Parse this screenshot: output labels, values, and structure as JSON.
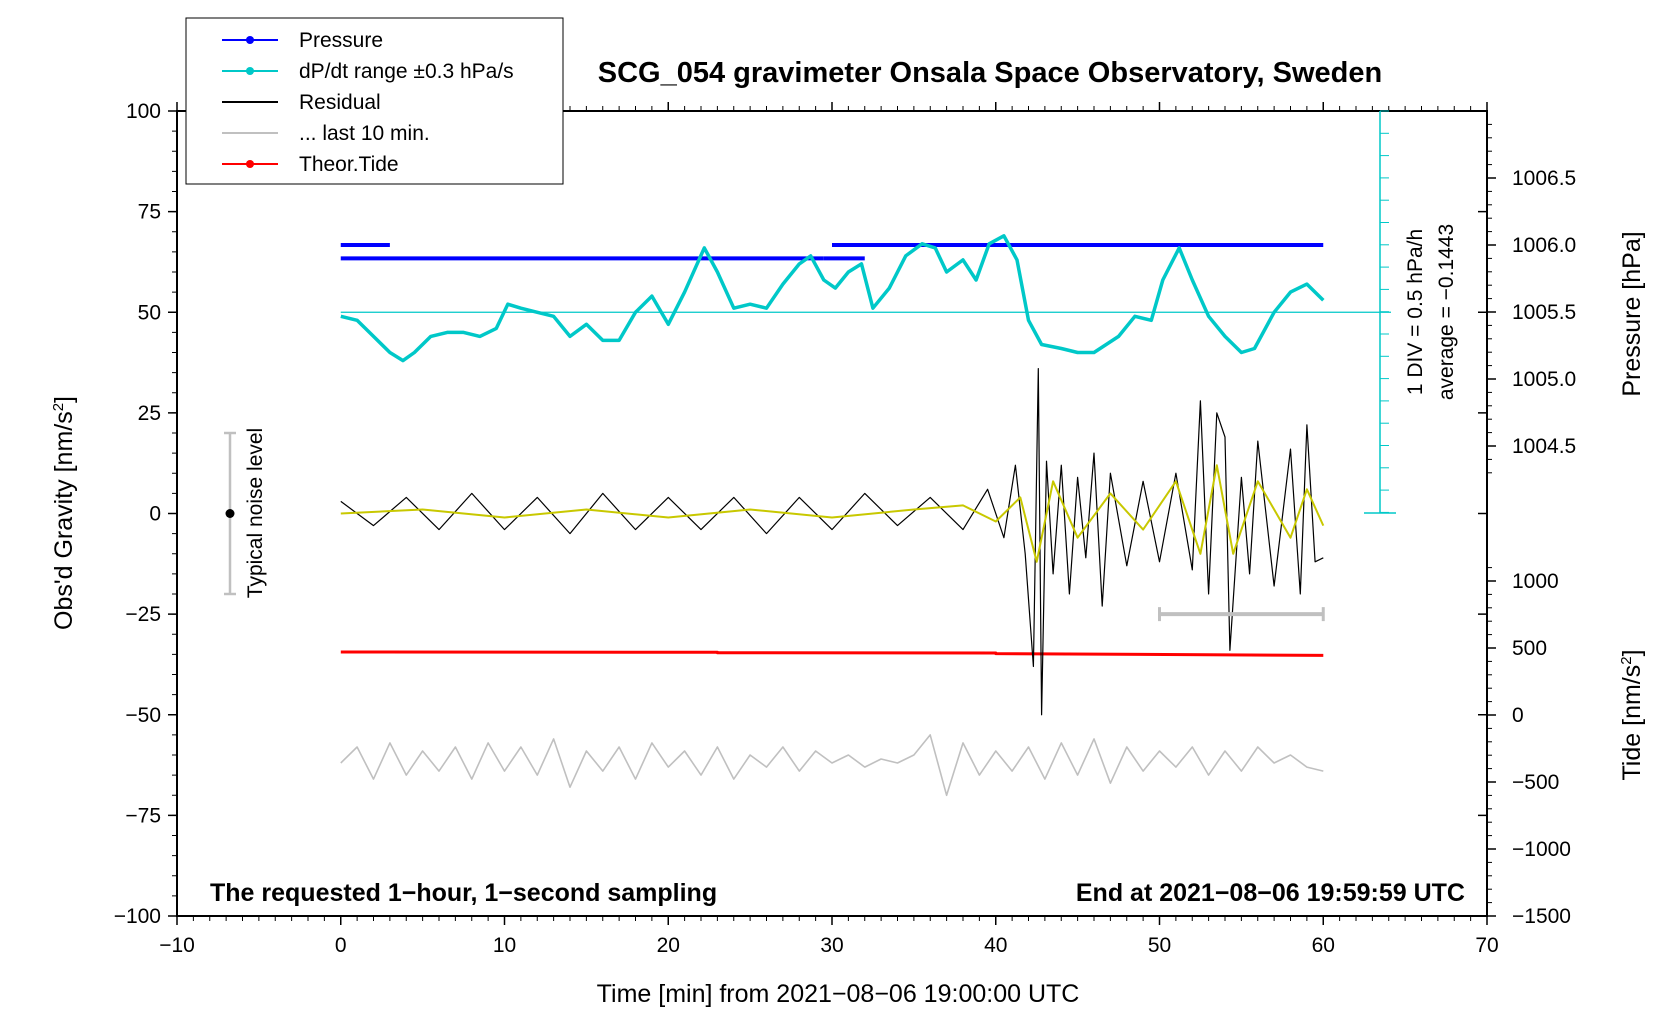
{
  "chart_data": {
    "type": "line",
    "title": "SCG_054 gravimeter Onsala Space Observatory, Sweden",
    "xlabel": "Time [min] from 2021−08−06 19:00:00 UTC",
    "ylabel_left": "Obs'd Gravity [nm/s²]",
    "ylabel_right_top": "Pressure [hPa]",
    "ylabel_right_bottom": "Tide [nm/s²]",
    "xlim": [
      -10,
      70
    ],
    "ylim": [
      -100,
      100
    ],
    "x_ticks": [
      "−10",
      "0",
      "10",
      "20",
      "30",
      "40",
      "50",
      "60",
      "70"
    ],
    "y_ticks_left": [
      "100",
      "75",
      "50",
      "25",
      "0",
      "−25",
      "−50",
      "−75",
      "−100"
    ],
    "pressure_ticks": [
      "1006.5",
      "1006.0",
      "1005.5",
      "1005.0",
      "1004.5"
    ],
    "tide_ticks": [
      "1000",
      "500",
      "0",
      "−500",
      "−1000",
      "−1500"
    ],
    "legend": {
      "placement": "top-left",
      "entries": [
        {
          "label": "Pressure",
          "color": "#0000ff",
          "marker": true
        },
        {
          "label": "dP/dt range ±0.3 hPa/s",
          "color": "#00c8c8",
          "marker": true
        },
        {
          "label": "Residual",
          "color": "#000000",
          "marker": false
        },
        {
          "label": "... last 10 min.",
          "color": "#c0c0c0",
          "marker": false
        },
        {
          "label": "Theor.Tide",
          "color": "#ff0000",
          "marker": true
        }
      ]
    },
    "annotations": {
      "noise_level": "Typical noise level",
      "scale": "1 DIV = 0.5 hPa/h",
      "average": "average = −0.1443",
      "bottom_left": "The requested 1−hour, 1−second sampling",
      "bottom_right": "End at 2021−08−06 19:59:59 UTC"
    },
    "noise_level_range": [
      -20,
      20
    ],
    "last10min_range": [
      50,
      60
    ],
    "series": [
      {
        "name": "Pressure",
        "color": "#0000ff",
        "axis": "pressure",
        "segments": [
          {
            "x": [
              0,
              29.5
            ],
            "y": 1005.9
          },
          {
            "x": [
              0,
              3
            ],
            "y": 1006.0
          },
          {
            "x": [
              29.5,
              32
            ],
            "y": 1005.9
          },
          {
            "x": [
              30,
              60
            ],
            "y": 1006.0
          }
        ]
      },
      {
        "name": "dP/dt range ±0.3 hPa/s",
        "color": "#00c8c8",
        "axis": "gravity",
        "baseline": 50,
        "x": [
          0,
          1,
          2,
          3,
          3.8,
          4.5,
          5.5,
          6.5,
          7.5,
          8.5,
          9.5,
          10.2,
          11,
          12,
          13,
          14,
          15,
          16,
          17,
          18,
          19,
          20,
          21,
          22.2,
          23,
          24,
          25,
          26,
          27,
          28,
          28.7,
          29.5,
          30.2,
          31,
          31.8,
          32.5,
          33.5,
          34.5,
          35.5,
          36.3,
          37,
          38,
          38.8,
          39.6,
          40.5,
          41.3,
          42,
          42.8,
          44,
          45,
          46,
          47.5,
          48.5,
          49.5,
          50.2,
          51.2,
          52,
          53,
          54,
          55,
          55.8,
          57,
          58,
          59,
          60
        ],
        "y": [
          49,
          48,
          44,
          40,
          38,
          40,
          44,
          45,
          45,
          44,
          46,
          52,
          51,
          50,
          49,
          44,
          47,
          43,
          43,
          50,
          54,
          47,
          55,
          66,
          60,
          51,
          52,
          51,
          57,
          62,
          64,
          58,
          56,
          60,
          62,
          51,
          56,
          64,
          67,
          66,
          60,
          63,
          58,
          67,
          69,
          63,
          48,
          42,
          41,
          40,
          40,
          44,
          49,
          48,
          58,
          66,
          58,
          49,
          44,
          40,
          41,
          50,
          55,
          57,
          53
        ]
      },
      {
        "name": "Theor.Tide",
        "color": "#ff0000",
        "axis": "tide",
        "x": [
          0,
          23,
          23,
          40,
          40,
          60
        ],
        "y": [
          470,
          468,
          465,
          463,
          458,
          445
        ]
      },
      {
        "name": "Residual",
        "color": "#000000",
        "axis": "gravity",
        "x": [
          0,
          2,
          4,
          6,
          8,
          10,
          12,
          14,
          16,
          18,
          20,
          22,
          24,
          26,
          28,
          30,
          32,
          34,
          36,
          38,
          39.5,
          40.5,
          41.2,
          41.8,
          42.3,
          42.6,
          42.8,
          43.1,
          43.5,
          44,
          44.5,
          45,
          45.5,
          46,
          46.5,
          47,
          48,
          49,
          50,
          51,
          52,
          52.5,
          53,
          53.5,
          54,
          54.3,
          55,
          55.5,
          56,
          57,
          58,
          58.6,
          59,
          59.5,
          60
        ],
        "y": [
          3,
          -3,
          4,
          -4,
          5,
          -4,
          4,
          -5,
          5,
          -4,
          4,
          -4,
          4,
          -5,
          4,
          -4,
          5,
          -3,
          4,
          -4,
          6,
          -6,
          12,
          -10,
          -38,
          36,
          -50,
          13,
          -15,
          12,
          -20,
          9,
          -11,
          15,
          -23,
          10,
          -13,
          8,
          -12,
          10,
          -14,
          28,
          -20,
          25,
          19,
          -34,
          9,
          -15,
          18,
          -18,
          16,
          -20,
          22,
          -12,
          -11
        ]
      },
      {
        "name": "... last 10 min.",
        "color": "#c0c0c0",
        "axis": "gravity",
        "x": [
          0,
          1,
          2,
          3,
          4,
          5,
          6,
          7,
          8,
          9,
          10,
          11,
          12,
          13,
          14,
          15,
          16,
          17,
          18,
          19,
          20,
          21,
          22,
          23,
          24,
          25,
          26,
          27,
          28,
          29,
          30,
          31,
          32,
          33,
          34,
          35,
          36,
          37,
          38,
          39,
          40,
          41,
          42,
          43,
          44,
          45,
          46,
          47,
          48,
          49,
          50,
          51,
          52,
          53,
          54,
          55,
          56,
          57,
          58,
          59,
          60
        ],
        "y": [
          -62,
          -58,
          -66,
          -57,
          -65,
          -59,
          -64,
          -58,
          -66,
          -57,
          -64,
          -58,
          -65,
          -56,
          -68,
          -59,
          -64,
          -58,
          -66,
          -57,
          -63,
          -59,
          -65,
          -58,
          -66,
          -60,
          -63,
          -58,
          -64,
          -59,
          -62,
          -60,
          -63,
          -61,
          -62,
          -60,
          -55,
          -70,
          -57,
          -65,
          -59,
          -64,
          -58,
          -66,
          -57,
          -65,
          -56,
          -67,
          -58,
          -64,
          -59,
          -63,
          -58,
          -65,
          -59,
          -64,
          -58,
          -62,
          -60,
          -63,
          -64
        ]
      },
      {
        "name": "yellow filtered residual",
        "color": "#c8c800",
        "axis": "gravity",
        "x": [
          0,
          5,
          10,
          15,
          20,
          25,
          30,
          35,
          38,
          40,
          41.5,
          42.5,
          43.5,
          45,
          47,
          49,
          51,
          52.5,
          53.5,
          54.5,
          56,
          58,
          59,
          60
        ],
        "y": [
          0,
          1,
          -1,
          1,
          -1,
          1,
          -1,
          1,
          2,
          -2,
          4,
          -12,
          8,
          -6,
          5,
          -4,
          8,
          -10,
          12,
          -10,
          8,
          -6,
          6,
          -3
        ]
      }
    ]
  }
}
